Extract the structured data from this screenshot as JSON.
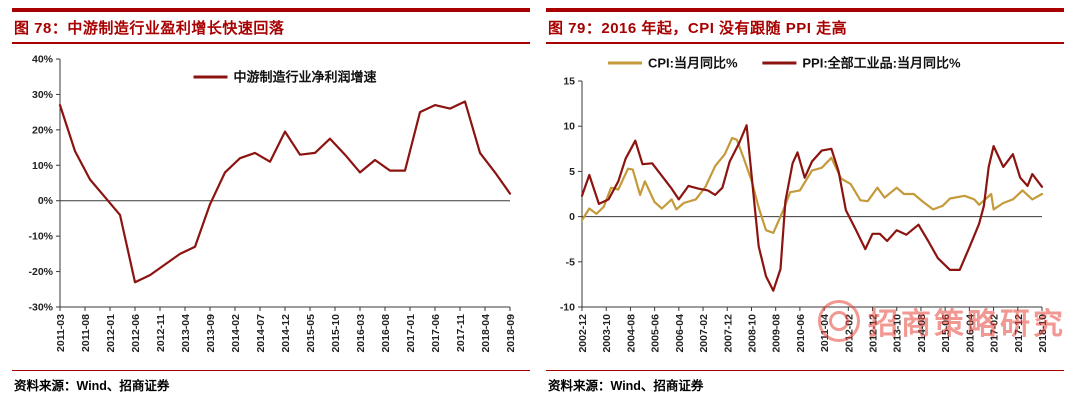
{
  "theme": {
    "accent": "#a80000",
    "dark_red_line": "#8b1410",
    "gold_line": "#c49a3b",
    "watermark_red": "#e8443c"
  },
  "figures": [
    {
      "title": "图 78：中游制造行业盈利增长快速回落",
      "source": "资料来源：Wind、招商证券"
    },
    {
      "title": "图 79：2016 年起，CPI 没有跟随 PPI 走高",
      "source": "资料来源：Wind、招商证券"
    }
  ],
  "watermark": {
    "text": "招商策略研究"
  },
  "chart_data": [
    {
      "type": "line",
      "title": "中游制造行业盈利增长快速回落",
      "xlabel": "",
      "ylabel": "",
      "ylim": [
        -30,
        40
      ],
      "yticks": [
        40,
        30,
        20,
        10,
        0,
        -10,
        -20,
        -30
      ],
      "y_suffix": "%",
      "grid": false,
      "legend_position": "top-center-inside",
      "xmax": 90,
      "x_tick_interval": 5,
      "x_tick_labels": [
        "2011-03",
        "2011-08",
        "2012-01",
        "2012-06",
        "2012-11",
        "2013-04",
        "2013-09",
        "2014-02",
        "2014-07",
        "2014-12",
        "2015-05",
        "2015-10",
        "2016-03",
        "2016-08",
        "2017-01",
        "2017-06",
        "2017-11",
        "2018-04",
        "2018-09"
      ],
      "series": [
        {
          "name": "中游制造行业净利润增速",
          "color": "#8b1410",
          "points": [
            [
              0,
              27
            ],
            [
              3,
              14
            ],
            [
              6,
              6
            ],
            [
              9,
              1
            ],
            [
              12,
              -4
            ],
            [
              15,
              -23
            ],
            [
              18,
              -21
            ],
            [
              21,
              -18
            ],
            [
              24,
              -15
            ],
            [
              27,
              -13
            ],
            [
              30,
              -1
            ],
            [
              33,
              8
            ],
            [
              36,
              12
            ],
            [
              39,
              13.5
            ],
            [
              42,
              11
            ],
            [
              45,
              19.5
            ],
            [
              48,
              13
            ],
            [
              51,
              13.5
            ],
            [
              54,
              17.5
            ],
            [
              57,
              13
            ],
            [
              60,
              8
            ],
            [
              63,
              11.5
            ],
            [
              66,
              8.5
            ],
            [
              69,
              8.5
            ],
            [
              72,
              25
            ],
            [
              75,
              27
            ],
            [
              78,
              26
            ],
            [
              81,
              28
            ],
            [
              84,
              13.5
            ],
            [
              87,
              8
            ],
            [
              90,
              2
            ]
          ]
        }
      ]
    },
    {
      "type": "line",
      "title": "2016 年起，CPI 没有跟随 PPI 走高",
      "xlabel": "",
      "ylabel": "",
      "ylim": [
        -10,
        15
      ],
      "yticks": [
        15,
        10,
        5,
        0,
        -5,
        -10
      ],
      "y_suffix": "",
      "grid": false,
      "legend_position": "top-left",
      "xmax": 190,
      "x_tick_interval": 10,
      "x_tick_labels": [
        "2002-12",
        "2003-10",
        "2004-08",
        "2005-06",
        "2006-04",
        "2007-02",
        "2007-12",
        "2008-10",
        "2009-08",
        "2010-06",
        "2011-04",
        "2012-02",
        "2012-12",
        "2013-10",
        "2014-08",
        "2015-06",
        "2016-04",
        "2017-02",
        "2017-12",
        "2018-10"
      ],
      "series": [
        {
          "name": "CPI:当月同比%",
          "color": "#c49a3b",
          "points": [
            [
              0,
              -0.4
            ],
            [
              3,
              0.9
            ],
            [
              6,
              0.3
            ],
            [
              9,
              1.1
            ],
            [
              12,
              3.2
            ],
            [
              15,
              3.0
            ],
            [
              19,
              5.3
            ],
            [
              21,
              5.2
            ],
            [
              24,
              2.4
            ],
            [
              26,
              3.9
            ],
            [
              30,
              1.6
            ],
            [
              33,
              0.9
            ],
            [
              37,
              1.9
            ],
            [
              39,
              0.8
            ],
            [
              42,
              1.5
            ],
            [
              47,
              1.9
            ],
            [
              51,
              3.3
            ],
            [
              55,
              5.6
            ],
            [
              59,
              6.9
            ],
            [
              62,
              8.7
            ],
            [
              64,
              8.5
            ],
            [
              67,
              6.3
            ],
            [
              70,
              4.0
            ],
            [
              73,
              1.0
            ],
            [
              76,
              -1.5
            ],
            [
              79,
              -1.8
            ],
            [
              83,
              0.6
            ],
            [
              86,
              2.7
            ],
            [
              90,
              2.9
            ],
            [
              95,
              5.1
            ],
            [
              99,
              5.4
            ],
            [
              103,
              6.5
            ],
            [
              107,
              4.2
            ],
            [
              111,
              3.6
            ],
            [
              115,
              1.8
            ],
            [
              118,
              1.7
            ],
            [
              122,
              3.2
            ],
            [
              125,
              2.1
            ],
            [
              130,
              3.2
            ],
            [
              133,
              2.5
            ],
            [
              137,
              2.5
            ],
            [
              141,
              1.6
            ],
            [
              145,
              0.8
            ],
            [
              149,
              1.2
            ],
            [
              152,
              2.0
            ],
            [
              158,
              2.3
            ],
            [
              162,
              1.9
            ],
            [
              164,
              1.3
            ],
            [
              169,
              2.5
            ],
            [
              170,
              0.8
            ],
            [
              174,
              1.5
            ],
            [
              178,
              1.9
            ],
            [
              182,
              2.9
            ],
            [
              186,
              1.9
            ],
            [
              190,
              2.5
            ]
          ]
        },
        {
          "name": "PPI:全部工业品:当月同比%",
          "color": "#8b1410",
          "points": [
            [
              0,
              2.3
            ],
            [
              3,
              4.6
            ],
            [
              7,
              1.4
            ],
            [
              11,
              1.9
            ],
            [
              15,
              3.9
            ],
            [
              18,
              6.4
            ],
            [
              22,
              8.4
            ],
            [
              25,
              5.8
            ],
            [
              29,
              5.9
            ],
            [
              33,
              4.5
            ],
            [
              37,
              3.1
            ],
            [
              40,
              1.9
            ],
            [
              44,
              3.4
            ],
            [
              48,
              3.1
            ],
            [
              52,
              2.9
            ],
            [
              55,
              2.4
            ],
            [
              58,
              3.2
            ],
            [
              61,
              6.1
            ],
            [
              65,
              8.2
            ],
            [
              68,
              10.1
            ],
            [
              71,
              2.0
            ],
            [
              73,
              -3.3
            ],
            [
              76,
              -6.6
            ],
            [
              79,
              -8.2
            ],
            [
              82,
              -5.8
            ],
            [
              84,
              1.7
            ],
            [
              87,
              5.9
            ],
            [
              89,
              7.1
            ],
            [
              92,
              4.3
            ],
            [
              95,
              6.1
            ],
            [
              99,
              7.3
            ],
            [
              103,
              7.5
            ],
            [
              106,
              5.0
            ],
            [
              109,
              0.7
            ],
            [
              113,
              -1.4
            ],
            [
              117,
              -3.6
            ],
            [
              120,
              -1.9
            ],
            [
              123,
              -1.9
            ],
            [
              126,
              -2.7
            ],
            [
              130,
              -1.5
            ],
            [
              134,
              -2.0
            ],
            [
              139,
              -0.9
            ],
            [
              143,
              -2.7
            ],
            [
              147,
              -4.6
            ],
            [
              152,
              -5.9
            ],
            [
              156,
              -5.9
            ],
            [
              160,
              -3.4
            ],
            [
              164,
              -0.8
            ],
            [
              166,
              1.2
            ],
            [
              168,
              5.5
            ],
            [
              170,
              7.8
            ],
            [
              174,
              5.5
            ],
            [
              178,
              6.9
            ],
            [
              181,
              4.3
            ],
            [
              184,
              3.4
            ],
            [
              186,
              4.7
            ],
            [
              190,
              3.3
            ]
          ]
        }
      ]
    }
  ]
}
